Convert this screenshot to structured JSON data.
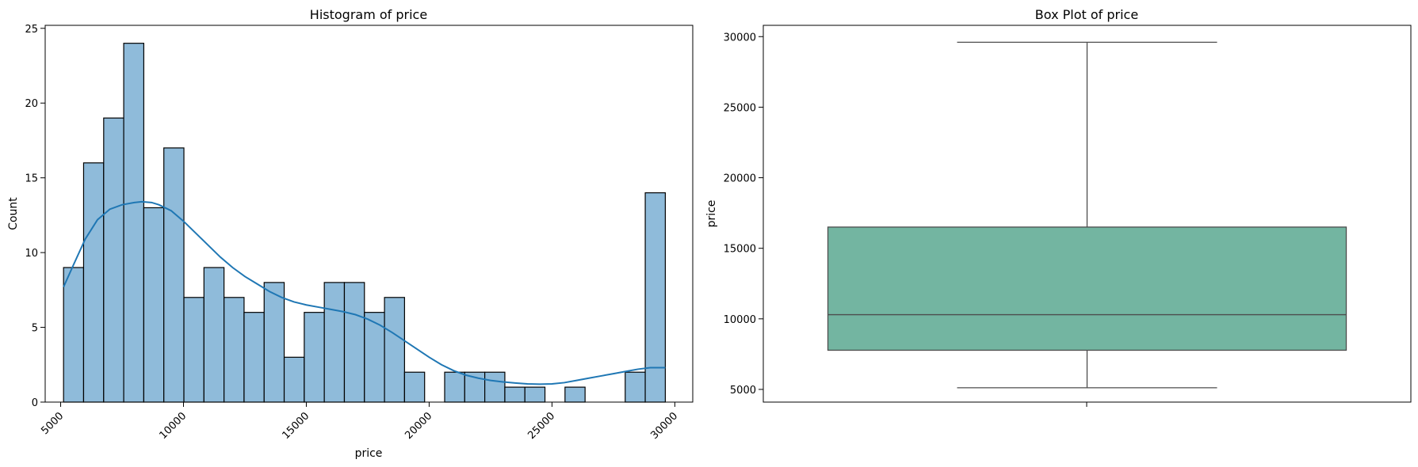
{
  "chart_data": [
    {
      "type": "bar",
      "title": "Histogram of price",
      "xlabel": "price",
      "ylabel": "Count",
      "xlim": [
        4370,
        30730
      ],
      "ylim": [
        0,
        25.2
      ],
      "xticks": [
        5000,
        10000,
        15000,
        20000,
        25000,
        30000
      ],
      "yticks": [
        0,
        5,
        10,
        15,
        20,
        25
      ],
      "xtick_rotation": 45,
      "grid": false,
      "bar_color": "#8fbbda",
      "bar_edge_color": "#000000",
      "bins": [
        {
          "x0": 5118,
          "x1": 5934,
          "count": 9
        },
        {
          "x0": 5934,
          "x1": 6751,
          "count": 16
        },
        {
          "x0": 6751,
          "x1": 7567,
          "count": 19
        },
        {
          "x0": 7567,
          "x1": 8384,
          "count": 24
        },
        {
          "x0": 8384,
          "x1": 9200,
          "count": 13
        },
        {
          "x0": 9200,
          "x1": 10017,
          "count": 17
        },
        {
          "x0": 10017,
          "x1": 10833,
          "count": 7
        },
        {
          "x0": 10833,
          "x1": 11650,
          "count": 9
        },
        {
          "x0": 11650,
          "x1": 12466,
          "count": 7
        },
        {
          "x0": 12466,
          "x1": 13283,
          "count": 6
        },
        {
          "x0": 13283,
          "x1": 14099,
          "count": 8
        },
        {
          "x0": 14099,
          "x1": 14916,
          "count": 3
        },
        {
          "x0": 14916,
          "x1": 15732,
          "count": 6
        },
        {
          "x0": 15732,
          "x1": 16549,
          "count": 8
        },
        {
          "x0": 16549,
          "x1": 17365,
          "count": 8
        },
        {
          "x0": 17365,
          "x1": 18182,
          "count": 6
        },
        {
          "x0": 18182,
          "x1": 18998,
          "count": 7
        },
        {
          "x0": 18998,
          "x1": 19815,
          "count": 2
        },
        {
          "x0": 19815,
          "x1": 20631,
          "count": 0
        },
        {
          "x0": 20631,
          "x1": 21448,
          "count": 2
        },
        {
          "x0": 21448,
          "x1": 22264,
          "count": 2
        },
        {
          "x0": 22264,
          "x1": 23081,
          "count": 2
        },
        {
          "x0": 23081,
          "x1": 23897,
          "count": 1
        },
        {
          "x0": 23897,
          "x1": 24714,
          "count": 1
        },
        {
          "x0": 24714,
          "x1": 25530,
          "count": 0
        },
        {
          "x0": 25530,
          "x1": 26347,
          "count": 1
        },
        {
          "x0": 26347,
          "x1": 27163,
          "count": 0
        },
        {
          "x0": 27163,
          "x1": 27980,
          "count": 0
        },
        {
          "x0": 27980,
          "x1": 28796,
          "count": 2
        },
        {
          "x0": 28796,
          "x1": 29613,
          "count": 14
        }
      ],
      "kde_color": "#1f77b4",
      "kde": [
        [
          5118,
          7.7
        ],
        [
          5500,
          9.1
        ],
        [
          6000,
          10.9
        ],
        [
          6500,
          12.2
        ],
        [
          7000,
          12.9
        ],
        [
          7500,
          13.2
        ],
        [
          8000,
          13.35
        ],
        [
          8300,
          13.4
        ],
        [
          8700,
          13.35
        ],
        [
          9000,
          13.2
        ],
        [
          9500,
          12.8
        ],
        [
          10000,
          12.1
        ],
        [
          10500,
          11.3
        ],
        [
          11000,
          10.5
        ],
        [
          11500,
          9.7
        ],
        [
          12000,
          9.0
        ],
        [
          12500,
          8.4
        ],
        [
          13000,
          7.9
        ],
        [
          13500,
          7.4
        ],
        [
          14000,
          7.0
        ],
        [
          14500,
          6.7
        ],
        [
          15000,
          6.5
        ],
        [
          15500,
          6.35
        ],
        [
          16000,
          6.2
        ],
        [
          16500,
          6.05
        ],
        [
          17000,
          5.85
        ],
        [
          17500,
          5.55
        ],
        [
          18000,
          5.15
        ],
        [
          18500,
          4.65
        ],
        [
          19000,
          4.1
        ],
        [
          19500,
          3.55
        ],
        [
          20000,
          3.0
        ],
        [
          20500,
          2.5
        ],
        [
          21000,
          2.1
        ],
        [
          21500,
          1.8
        ],
        [
          22000,
          1.6
        ],
        [
          22500,
          1.45
        ],
        [
          23000,
          1.35
        ],
        [
          23500,
          1.28
        ],
        [
          24000,
          1.22
        ],
        [
          24500,
          1.2
        ],
        [
          25000,
          1.22
        ],
        [
          25500,
          1.3
        ],
        [
          26000,
          1.45
        ],
        [
          26500,
          1.6
        ],
        [
          27000,
          1.75
        ],
        [
          27500,
          1.9
        ],
        [
          28000,
          2.05
        ],
        [
          28500,
          2.2
        ],
        [
          29000,
          2.3
        ],
        [
          29613,
          2.3
        ]
      ]
    },
    {
      "type": "box",
      "title": "Box Plot of price",
      "xlabel": "",
      "ylabel": "price",
      "ylim": [
        4100,
        30800
      ],
      "yticks": [
        5000,
        10000,
        15000,
        20000,
        25000,
        30000
      ],
      "grid": false,
      "box_color": "#73b5a1",
      "box_edge_color": "#4d4d4d",
      "whisker_low": 5118,
      "q1": 7775,
      "median": 10295,
      "q3": 16503,
      "whisker_high": 29600
    }
  ]
}
